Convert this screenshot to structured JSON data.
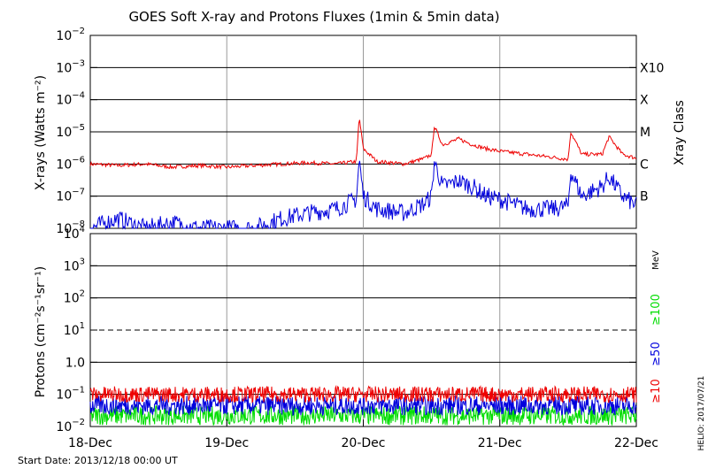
{
  "chart_data": {
    "type": "line",
    "title": "GOES Soft X-ray and Protons Fluxes   (1min & 5min data)",
    "start_date": "Start Date: 2013/12/18 00:00 UT",
    "watermark": "HELIO: 2017/07/21",
    "x_tick_labels": [
      "18-Dec",
      "19-Dec",
      "20-Dec",
      "21-Dec",
      "22-Dec"
    ],
    "xlim_days": [
      0,
      4
    ],
    "xray_panel": {
      "ylabel": "X-rays (Watts m⁻²)",
      "yscale": "log",
      "ylim_exp": [
        -8,
        -2
      ],
      "y_tick_exponents": [
        -8,
        -7,
        -6,
        -5,
        -4,
        -3,
        -2
      ],
      "right_axis_title": "Xray Class",
      "classes": [
        {
          "label": "B",
          "exp": -7
        },
        {
          "label": "C",
          "exp": -6
        },
        {
          "label": "M",
          "exp": -5
        },
        {
          "label": "X",
          "exp": -4
        },
        {
          "label": "X10",
          "exp": -3
        }
      ],
      "series": [
        {
          "color": "#ee0000",
          "points": [
            [
              0,
              1e-06
            ],
            [
              0.2,
              9e-07
            ],
            [
              0.4,
              1e-06
            ],
            [
              0.6,
              8e-07
            ],
            [
              0.8,
              9e-07
            ],
            [
              1.0,
              8e-07
            ],
            [
              1.2,
              9e-07
            ],
            [
              1.4,
              1e-06
            ],
            [
              1.6,
              1.1e-06
            ],
            [
              1.8,
              1e-06
            ],
            [
              1.95,
              1.2e-06
            ],
            [
              1.97,
              3e-05
            ],
            [
              2.0,
              3e-06
            ],
            [
              2.1,
              1.2e-06
            ],
            [
              2.3,
              1e-06
            ],
            [
              2.45,
              1.5e-06
            ],
            [
              2.5,
              2e-06
            ],
            [
              2.52,
              1.5e-05
            ],
            [
              2.58,
              4e-06
            ],
            [
              2.7,
              6e-06
            ],
            [
              2.8,
              4e-06
            ],
            [
              2.9,
              3e-06
            ],
            [
              3.0,
              2.5e-06
            ],
            [
              3.2,
              2e-06
            ],
            [
              3.4,
              1.6e-06
            ],
            [
              3.5,
              1.4e-06
            ],
            [
              3.52,
              1e-05
            ],
            [
              3.6,
              2e-06
            ],
            [
              3.75,
              2e-06
            ],
            [
              3.8,
              7e-06
            ],
            [
              3.9,
              2e-06
            ],
            [
              4.0,
              1.5e-06
            ]
          ]
        },
        {
          "color": "#0000dd",
          "points": [
            [
              0,
              1e-08
            ],
            [
              0.2,
              2e-08
            ],
            [
              0.4,
              1e-08
            ],
            [
              0.6,
              1.5e-08
            ],
            [
              0.8,
              1e-08
            ],
            [
              1.0,
              1e-08
            ],
            [
              1.2,
              1e-08
            ],
            [
              1.4,
              2e-08
            ],
            [
              1.6,
              3e-08
            ],
            [
              1.8,
              4e-08
            ],
            [
              1.95,
              8e-08
            ],
            [
              1.97,
              1.5e-06
            ],
            [
              2.0,
              1e-07
            ],
            [
              2.1,
              4e-08
            ],
            [
              2.3,
              3e-08
            ],
            [
              2.45,
              6e-08
            ],
            [
              2.5,
              1e-07
            ],
            [
              2.52,
              1.2e-06
            ],
            [
              2.58,
              2e-07
            ],
            [
              2.7,
              3e-07
            ],
            [
              2.8,
              2e-07
            ],
            [
              2.9,
              1e-07
            ],
            [
              3.0,
              8e-08
            ],
            [
              3.2,
              4e-08
            ],
            [
              3.4,
              4e-08
            ],
            [
              3.5,
              5e-08
            ],
            [
              3.52,
              6e-07
            ],
            [
              3.6,
              1e-07
            ],
            [
              3.75,
              2e-07
            ],
            [
              3.8,
              4e-07
            ],
            [
              3.9,
              1e-07
            ],
            [
              4.0,
              5e-08
            ]
          ]
        }
      ]
    },
    "proton_panel": {
      "ylabel": "Protons (cm⁻²s⁻¹sr⁻¹)",
      "yscale": "log",
      "ylim_exp": [
        -2,
        4
      ],
      "y_tick_exponents": [
        -2,
        -1,
        0,
        1,
        2,
        3,
        4
      ],
      "dashed_threshold_exp": 1,
      "energy_unit": "MeV",
      "series": [
        {
          "name": "≥10",
          "color": "#ee0000",
          "level": 0.1,
          "spread": 0.25
        },
        {
          "name": "≥50",
          "color": "#0000dd",
          "level": 0.045,
          "spread": 0.3
        },
        {
          "name": "≥100",
          "color": "#00dd00",
          "level": 0.022,
          "spread": 0.3
        }
      ]
    }
  }
}
